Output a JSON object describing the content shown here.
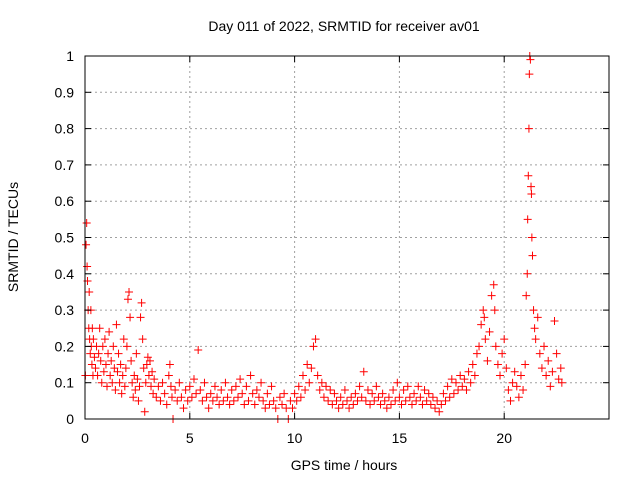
{
  "chart_data": {
    "type": "scatter",
    "title": "Day 011 of 2022, SRMTID for receiver av01",
    "xlabel": "GPS time / hours",
    "ylabel": "SRMTID / TECUs",
    "xlim": [
      0,
      25
    ],
    "ylim": [
      0,
      1
    ],
    "x_ticks": [
      0,
      5,
      10,
      15,
      20
    ],
    "x_tick_labels": [
      "0",
      "5",
      "10",
      "15",
      "20"
    ],
    "y_ticks": [
      0,
      0.1,
      0.2,
      0.3,
      0.4,
      0.5,
      0.6,
      0.7,
      0.8,
      0.9,
      1
    ],
    "y_tick_labels": [
      "0",
      "0.1",
      "0.2",
      "0.3",
      "0.4",
      "0.5",
      "0.6",
      "0.7",
      "0.8",
      "0.9",
      "1"
    ],
    "grid": true,
    "marker": "+",
    "series": [
      {
        "name": "SRMTID",
        "color": "#ff0000",
        "points": [
          [
            0.02,
            0.12
          ],
          [
            0.05,
            0.48
          ],
          [
            0.08,
            0.54
          ],
          [
            0.1,
            0.42
          ],
          [
            0.12,
            0.38
          ],
          [
            0.15,
            0.3
          ],
          [
            0.18,
            0.25
          ],
          [
            0.2,
            0.35
          ],
          [
            0.22,
            0.22
          ],
          [
            0.25,
            0.18
          ],
          [
            0.28,
            0.3
          ],
          [
            0.3,
            0.2
          ],
          [
            0.33,
            0.15
          ],
          [
            0.35,
            0.25
          ],
          [
            0.38,
            0.12
          ],
          [
            0.4,
            0.22
          ],
          [
            0.45,
            0.17
          ],
          [
            0.5,
            0.14
          ],
          [
            0.55,
            0.2
          ],
          [
            0.6,
            0.12
          ],
          [
            0.65,
            0.18
          ],
          [
            0.7,
            0.25
          ],
          [
            0.75,
            0.16
          ],
          [
            0.8,
            0.1
          ],
          [
            0.85,
            0.2
          ],
          [
            0.9,
            0.13
          ],
          [
            0.95,
            0.22
          ],
          [
            1.0,
            0.15
          ],
          [
            1.05,
            0.09
          ],
          [
            1.1,
            0.18
          ],
          [
            1.15,
            0.24
          ],
          [
            1.2,
            0.12
          ],
          [
            1.25,
            0.16
          ],
          [
            1.3,
            0.1
          ],
          [
            1.35,
            0.2
          ],
          [
            1.4,
            0.14
          ],
          [
            1.45,
            0.08
          ],
          [
            1.5,
            0.26
          ],
          [
            1.55,
            0.13
          ],
          [
            1.6,
            0.18
          ],
          [
            1.65,
            0.1
          ],
          [
            1.7,
            0.15
          ],
          [
            1.75,
            0.07
          ],
          [
            1.8,
            0.12
          ],
          [
            1.85,
            0.22
          ],
          [
            1.9,
            0.09
          ],
          [
            1.95,
            0.14
          ],
          [
            2.0,
            0.2
          ],
          [
            2.05,
            0.33
          ],
          [
            2.1,
            0.35
          ],
          [
            2.15,
            0.28
          ],
          [
            2.2,
            0.16
          ],
          [
            2.25,
            0.1
          ],
          [
            2.3,
            0.06
          ],
          [
            2.35,
            0.12
          ],
          [
            2.4,
            0.08
          ],
          [
            2.45,
            0.18
          ],
          [
            2.5,
            0.11
          ],
          [
            2.55,
            0.05
          ],
          [
            2.6,
            0.09
          ],
          [
            2.65,
            0.28
          ],
          [
            2.7,
            0.32
          ],
          [
            2.75,
            0.22
          ],
          [
            2.8,
            0.14
          ],
          [
            2.85,
            0.02
          ],
          [
            2.9,
            0.1
          ],
          [
            2.95,
            0.15
          ],
          [
            3.0,
            0.17
          ],
          [
            3.05,
            0.12
          ],
          [
            3.1,
            0.16
          ],
          [
            3.15,
            0.09
          ],
          [
            3.2,
            0.13
          ],
          [
            3.25,
            0.07
          ],
          [
            3.3,
            0.11
          ],
          [
            3.4,
            0.06
          ],
          [
            3.5,
            0.09
          ],
          [
            3.6,
            0.05
          ],
          [
            3.7,
            0.1
          ],
          [
            3.8,
            0.07
          ],
          [
            3.9,
            0.04
          ],
          [
            4.0,
            0.12
          ],
          [
            4.05,
            0.15
          ],
          [
            4.1,
            0.09
          ],
          [
            4.15,
            0.06
          ],
          [
            4.2,
            0.0
          ],
          [
            4.3,
            0.08
          ],
          [
            4.4,
            0.05
          ],
          [
            4.5,
            0.1
          ],
          [
            4.6,
            0.06
          ],
          [
            4.7,
            0.03
          ],
          [
            4.8,
            0.08
          ],
          [
            4.9,
            0.05
          ],
          [
            5.0,
            0.09
          ],
          [
            5.1,
            0.06
          ],
          [
            5.2,
            0.11
          ],
          [
            5.3,
            0.07
          ],
          [
            5.4,
            0.19
          ],
          [
            5.5,
            0.08
          ],
          [
            5.6,
            0.05
          ],
          [
            5.7,
            0.1
          ],
          [
            5.8,
            0.06
          ],
          [
            5.9,
            0.03
          ],
          [
            6.0,
            0.07
          ],
          [
            6.1,
            0.05
          ],
          [
            6.2,
            0.09
          ],
          [
            6.3,
            0.06
          ],
          [
            6.4,
            0.04
          ],
          [
            6.5,
            0.08
          ],
          [
            6.6,
            0.05
          ],
          [
            6.7,
            0.1
          ],
          [
            6.8,
            0.06
          ],
          [
            6.9,
            0.04
          ],
          [
            7.0,
            0.08
          ],
          [
            7.1,
            0.05
          ],
          [
            7.2,
            0.09
          ],
          [
            7.3,
            0.06
          ],
          [
            7.4,
            0.11
          ],
          [
            7.5,
            0.07
          ],
          [
            7.6,
            0.04
          ],
          [
            7.7,
            0.09
          ],
          [
            7.8,
            0.05
          ],
          [
            7.9,
            0.12
          ],
          [
            8.0,
            0.07
          ],
          [
            8.1,
            0.04
          ],
          [
            8.2,
            0.08
          ],
          [
            8.3,
            0.06
          ],
          [
            8.4,
            0.1
          ],
          [
            8.5,
            0.05
          ],
          [
            8.6,
            0.03
          ],
          [
            8.7,
            0.07
          ],
          [
            8.8,
            0.04
          ],
          [
            8.9,
            0.09
          ],
          [
            9.0,
            0.05
          ],
          [
            9.1,
            0.03
          ],
          [
            9.2,
            0.0
          ],
          [
            9.3,
            0.06
          ],
          [
            9.4,
            0.04
          ],
          [
            9.5,
            0.07
          ],
          [
            9.6,
            0.03
          ],
          [
            9.7,
            0.0
          ],
          [
            9.8,
            0.05
          ],
          [
            9.9,
            0.03
          ],
          [
            10.0,
            0.07
          ],
          [
            10.1,
            0.05
          ],
          [
            10.2,
            0.09
          ],
          [
            10.3,
            0.06
          ],
          [
            10.4,
            0.12
          ],
          [
            10.5,
            0.08
          ],
          [
            10.6,
            0.15
          ],
          [
            10.7,
            0.1
          ],
          [
            10.8,
            0.14
          ],
          [
            10.9,
            0.2
          ],
          [
            11.0,
            0.22
          ],
          [
            11.1,
            0.12
          ],
          [
            11.2,
            0.08
          ],
          [
            11.3,
            0.1
          ],
          [
            11.4,
            0.06
          ],
          [
            11.5,
            0.09
          ],
          [
            11.6,
            0.05
          ],
          [
            11.7,
            0.08
          ],
          [
            11.8,
            0.04
          ],
          [
            11.9,
            0.07
          ],
          [
            12.0,
            0.05
          ],
          [
            12.1,
            0.03
          ],
          [
            12.2,
            0.06
          ],
          [
            12.3,
            0.04
          ],
          [
            12.4,
            0.08
          ],
          [
            12.5,
            0.05
          ],
          [
            12.6,
            0.03
          ],
          [
            12.7,
            0.06
          ],
          [
            12.8,
            0.04
          ],
          [
            12.9,
            0.07
          ],
          [
            13.0,
            0.05
          ],
          [
            13.1,
            0.09
          ],
          [
            13.2,
            0.06
          ],
          [
            13.3,
            0.13
          ],
          [
            13.4,
            0.05
          ],
          [
            13.5,
            0.08
          ],
          [
            13.6,
            0.04
          ],
          [
            13.7,
            0.07
          ],
          [
            13.8,
            0.05
          ],
          [
            13.9,
            0.09
          ],
          [
            14.0,
            0.06
          ],
          [
            14.1,
            0.04
          ],
          [
            14.2,
            0.07
          ],
          [
            14.3,
            0.05
          ],
          [
            14.4,
            0.03
          ],
          [
            14.5,
            0.06
          ],
          [
            14.6,
            0.04
          ],
          [
            14.7,
            0.08
          ],
          [
            14.8,
            0.05
          ],
          [
            14.9,
            0.1
          ],
          [
            15.0,
            0.06
          ],
          [
            15.1,
            0.04
          ],
          [
            15.2,
            0.08
          ],
          [
            15.3,
            0.05
          ],
          [
            15.4,
            0.09
          ],
          [
            15.5,
            0.06
          ],
          [
            15.6,
            0.04
          ],
          [
            15.7,
            0.07
          ],
          [
            15.8,
            0.05
          ],
          [
            15.9,
            0.09
          ],
          [
            16.0,
            0.06
          ],
          [
            16.1,
            0.04
          ],
          [
            16.2,
            0.08
          ],
          [
            16.3,
            0.05
          ],
          [
            16.4,
            0.07
          ],
          [
            16.5,
            0.04
          ],
          [
            16.6,
            0.06
          ],
          [
            16.7,
            0.03
          ],
          [
            16.8,
            0.05
          ],
          [
            16.9,
            0.02
          ],
          [
            17.0,
            0.04
          ],
          [
            17.1,
            0.07
          ],
          [
            17.2,
            0.05
          ],
          [
            17.3,
            0.09
          ],
          [
            17.4,
            0.06
          ],
          [
            17.5,
            0.11
          ],
          [
            17.6,
            0.07
          ],
          [
            17.7,
            0.1
          ],
          [
            17.8,
            0.08
          ],
          [
            17.9,
            0.12
          ],
          [
            18.0,
            0.09
          ],
          [
            18.1,
            0.11
          ],
          [
            18.2,
            0.08
          ],
          [
            18.3,
            0.13
          ],
          [
            18.4,
            0.1
          ],
          [
            18.5,
            0.15
          ],
          [
            18.6,
            0.12
          ],
          [
            18.7,
            0.18
          ],
          [
            18.8,
            0.2
          ],
          [
            18.9,
            0.26
          ],
          [
            19.0,
            0.3
          ],
          [
            19.05,
            0.28
          ],
          [
            19.1,
            0.22
          ],
          [
            19.2,
            0.16
          ],
          [
            19.3,
            0.24
          ],
          [
            19.4,
            0.34
          ],
          [
            19.5,
            0.37
          ],
          [
            19.55,
            0.3
          ],
          [
            19.6,
            0.2
          ],
          [
            19.7,
            0.15
          ],
          [
            19.8,
            0.12
          ],
          [
            19.9,
            0.18
          ],
          [
            20.0,
            0.22
          ],
          [
            20.1,
            0.14
          ],
          [
            20.2,
            0.08
          ],
          [
            20.3,
            0.05
          ],
          [
            20.4,
            0.1
          ],
          [
            20.5,
            0.13
          ],
          [
            20.6,
            0.09
          ],
          [
            20.7,
            0.06
          ],
          [
            20.8,
            0.12
          ],
          [
            20.9,
            0.08
          ],
          [
            21.0,
            0.15
          ],
          [
            21.05,
            0.34
          ],
          [
            21.1,
            0.4
          ],
          [
            21.12,
            0.55
          ],
          [
            21.15,
            0.67
          ],
          [
            21.18,
            0.8
          ],
          [
            21.2,
            0.95
          ],
          [
            21.22,
            1.0
          ],
          [
            21.25,
            0.99
          ],
          [
            21.28,
            0.64
          ],
          [
            21.3,
            0.62
          ],
          [
            21.32,
            0.5
          ],
          [
            21.35,
            0.45
          ],
          [
            21.4,
            0.3
          ],
          [
            21.45,
            0.25
          ],
          [
            21.5,
            0.22
          ],
          [
            21.6,
            0.28
          ],
          [
            21.7,
            0.18
          ],
          [
            21.8,
            0.14
          ],
          [
            21.9,
            0.2
          ],
          [
            22.0,
            0.12
          ],
          [
            22.1,
            0.16
          ],
          [
            22.2,
            0.09
          ],
          [
            22.3,
            0.13
          ],
          [
            22.4,
            0.27
          ],
          [
            22.5,
            0.18
          ],
          [
            22.6,
            0.11
          ],
          [
            22.7,
            0.14
          ],
          [
            22.75,
            0.1
          ]
        ]
      }
    ]
  }
}
